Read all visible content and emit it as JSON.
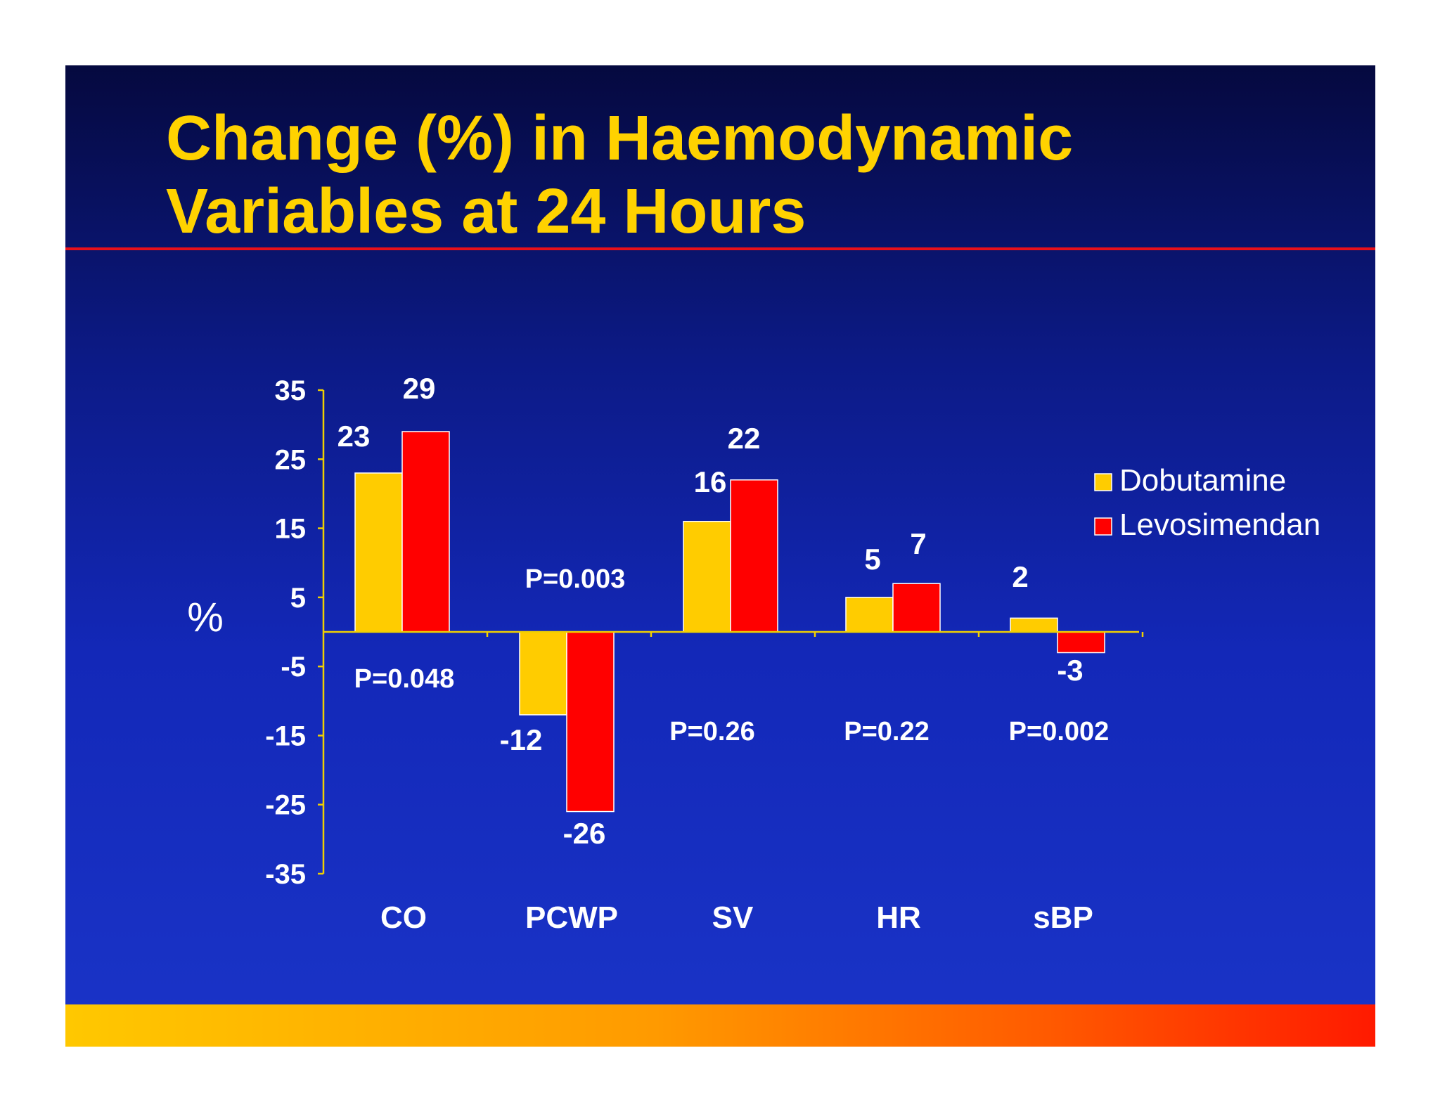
{
  "slide": {
    "title": "Change (%) in Haemodynamic\nVariables at 24 Hours",
    "colors": {
      "title": "#ffd200",
      "rule": "#e8101a",
      "axis": "#f0d000",
      "label": "#ffffff"
    }
  },
  "chart_data": {
    "type": "bar",
    "ylabel": "%",
    "ylim": [
      -35,
      35
    ],
    "yticks": [
      "35",
      "25",
      "15",
      "5",
      "-5",
      "-15",
      "-25",
      "-35"
    ],
    "ytick_values": [
      35,
      25,
      15,
      5,
      -5,
      -15,
      -25,
      -35
    ],
    "categories": [
      "CO",
      "PCWP",
      "SV",
      "HR",
      "sBP"
    ],
    "series": [
      {
        "name": "Dobutamine",
        "color": "#ffcc00",
        "values": [
          23,
          -12,
          16,
          5,
          2
        ]
      },
      {
        "name": "Levosimendan",
        "color": "#ff0000",
        "values": [
          29,
          -26,
          22,
          7,
          -3
        ]
      }
    ],
    "data_labels": [
      [
        "23",
        "-12",
        "16",
        "5",
        "2"
      ],
      [
        "29",
        "-26",
        "22",
        "7",
        "-3"
      ]
    ],
    "p_values": [
      "P=0.048",
      "P=0.003",
      "P=0.26",
      "P=0.22",
      "P=0.002"
    ],
    "legend": {
      "position": "right"
    },
    "grid": false
  }
}
